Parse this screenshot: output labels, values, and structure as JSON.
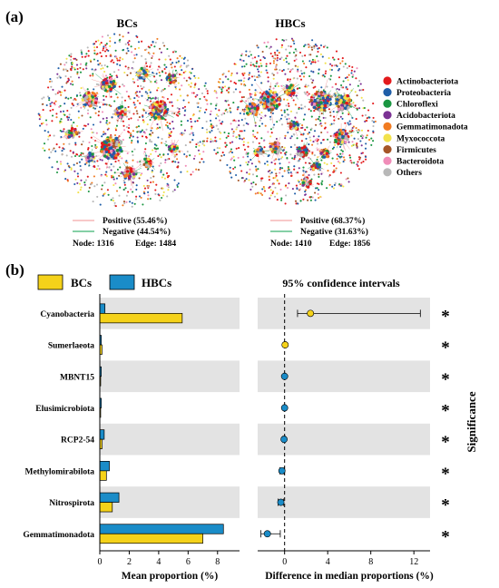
{
  "panel_a": {
    "label": "(a)",
    "networks": [
      {
        "title": "BCs",
        "positive": "Positive (55.46%)",
        "negative": "Negative (44.54%)",
        "nodes_text": "Node: 1316",
        "edges_text": "Edge: 1484"
      },
      {
        "title": "HBCs",
        "positive": "Positive (68.37%)",
        "negative": "Negative (31.63%)",
        "nodes_text": "Node: 1410",
        "edges_text": "Edge: 1856"
      }
    ],
    "legend": [
      {
        "name": "Actinobacteriota",
        "color": "#e31a1c"
      },
      {
        "name": "Proteobacteria",
        "color": "#1f5ea8"
      },
      {
        "name": "Chloroflexi",
        "color": "#1a9641"
      },
      {
        "name": "Acidobacteriota",
        "color": "#7b3294"
      },
      {
        "name": "Gemmatimonadota",
        "color": "#f17c22"
      },
      {
        "name": "Myxococcota",
        "color": "#f2e24b"
      },
      {
        "name": "Firmicutes",
        "color": "#a65628"
      },
      {
        "name": "Bacteroidota",
        "color": "#f08cb8"
      },
      {
        "name": "Others",
        "color": "#b8b8b8"
      }
    ],
    "edge_colors": {
      "positive": "#f4a6a6",
      "negative": "#3cb371"
    }
  },
  "panel_b": {
    "label": "(b)",
    "legend": [
      {
        "name": "BCs",
        "color": "#f5d21a"
      },
      {
        "name": "HBCs",
        "color": "#1a8cc8"
      }
    ],
    "ci_title": "95% confidence intervals",
    "significance_label": "Significance",
    "significance_mark": "*"
  },
  "chart_data": [
    {
      "type": "bar",
      "orientation": "horizontal",
      "categories": [
        "Cyanobacteria",
        "Sumerlaeota",
        "MBNT15",
        "Elusimicrobiota",
        "RCP2-54",
        "Methylomirabilota",
        "Nitrospirota",
        "Gemmatimonadota"
      ],
      "series": [
        {
          "name": "BCs",
          "values": [
            5.6,
            0.15,
            0.06,
            0.06,
            0.15,
            0.45,
            0.85,
            7.0
          ]
        },
        {
          "name": "HBCs",
          "values": [
            0.35,
            0.1,
            0.1,
            0.1,
            0.3,
            0.65,
            1.3,
            8.4
          ]
        }
      ],
      "xlabel": "Mean proportion (%)",
      "xlim": [
        0,
        9
      ],
      "xticks": [
        "0",
        "2",
        "4",
        "6",
        "8"
      ],
      "tick_values": [
        0,
        2,
        4,
        6,
        8
      ]
    },
    {
      "type": "scatter",
      "title": "95% confidence intervals",
      "categories": [
        "Cyanobacteria",
        "Sumerlaeota",
        "MBNT15",
        "Elusimicrobiota",
        "RCP2-54",
        "Methylomirabilota",
        "Nitrospirota",
        "Gemmatimonadota"
      ],
      "estimates": [
        2.4,
        0.05,
        0.0,
        0.0,
        -0.05,
        -0.25,
        -0.35,
        -1.6
      ],
      "ci_low": [
        1.2,
        0.0,
        -0.05,
        -0.05,
        -0.15,
        -0.45,
        -0.6,
        -2.2
      ],
      "ci_high": [
        12.6,
        0.1,
        0.05,
        0.05,
        0.05,
        -0.05,
        -0.1,
        -0.4
      ],
      "point_colors": [
        "#f5d21a",
        "#f5d21a",
        "#1a8cc8",
        "#1a8cc8",
        "#1a8cc8",
        "#1a8cc8",
        "#1a8cc8",
        "#1a8cc8"
      ],
      "xlabel": "Difference in median proportions (%)",
      "xlim": [
        -2.5,
        13.5
      ],
      "xticks": [
        "0",
        "4",
        "8",
        "12"
      ],
      "tick_values": [
        0,
        4,
        8,
        12
      ]
    }
  ]
}
